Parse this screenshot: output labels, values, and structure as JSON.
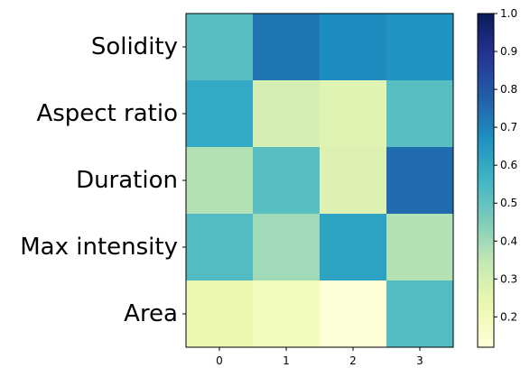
{
  "chart_data": {
    "type": "heatmap",
    "rows": [
      "Solidity",
      "Aspect ratio",
      "Duration",
      "Max intensity",
      "Area"
    ],
    "columns": [
      "0",
      "1",
      "2",
      "3"
    ],
    "values": [
      [
        0.52,
        0.73,
        0.68,
        0.66
      ],
      [
        0.6,
        0.3,
        0.27,
        0.52
      ],
      [
        0.37,
        0.52,
        0.28,
        0.75
      ],
      [
        0.53,
        0.4,
        0.62,
        0.37
      ],
      [
        0.24,
        0.2,
        0.13,
        0.53
      ]
    ],
    "colorbar": {
      "min": 0.12,
      "max": 1.0,
      "ticks": [
        "0.2",
        "0.3",
        "0.4",
        "0.5",
        "0.6",
        "0.7",
        "0.8",
        "0.9",
        "1.0"
      ],
      "colormap": "YlGnBu"
    },
    "title": "",
    "xlabel": "",
    "ylabel": ""
  }
}
